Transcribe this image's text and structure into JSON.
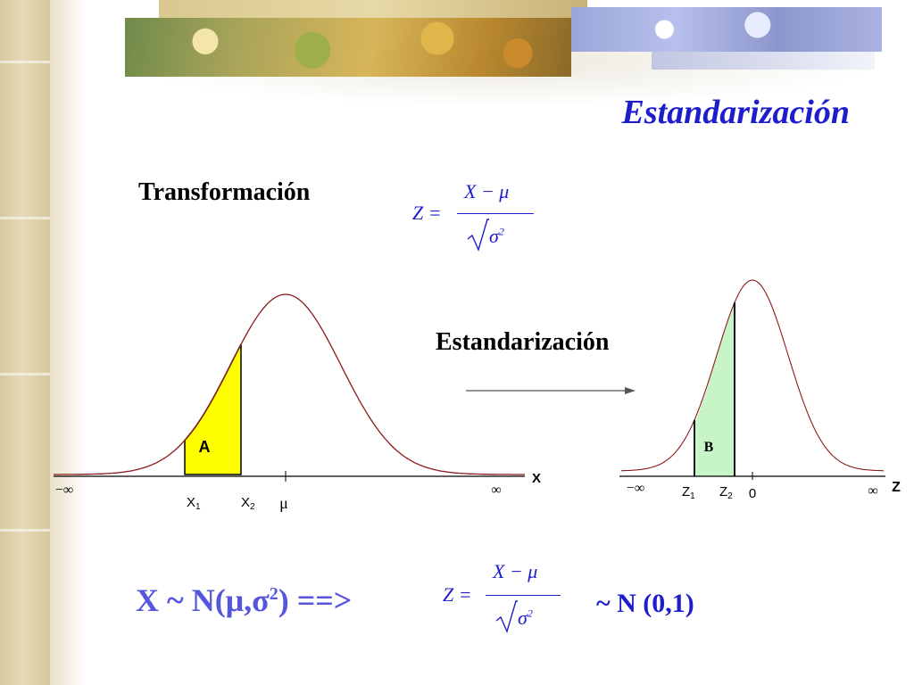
{
  "slide": {
    "title": "Estandarización",
    "transform_label": "Transformación",
    "standardize_label": "Estandarización",
    "formula": {
      "lhs": "Z =",
      "numerator": "X − μ",
      "denominator": "σ",
      "denominator_exp": "2"
    },
    "bottom": {
      "left_main": "X ~ N(μ,σ",
      "left_exp": "2",
      "left_tail": ") ==>",
      "right": "~ N (0,1)"
    },
    "colors": {
      "title": "#1d1dcc",
      "area_a": "#ffff00",
      "area_b": "#c8f5c8",
      "curve": "#8b1a1a"
    }
  },
  "left_curve": {
    "area_label": "A",
    "neg_inf": "−∞",
    "pos_inf": "∞",
    "axis_label": "X",
    "x1_label": "X",
    "x1_sub": "1",
    "x2_label": "X",
    "x2_sub": "2",
    "mu_label": "μ"
  },
  "right_curve": {
    "area_label": "B",
    "neg_inf": "−∞",
    "pos_inf": "∞",
    "axis_label": "Z",
    "z1_label": "Z",
    "z1_sub": "1",
    "z2_label": "Z",
    "z2_sub": "2",
    "zero_label": "0"
  }
}
